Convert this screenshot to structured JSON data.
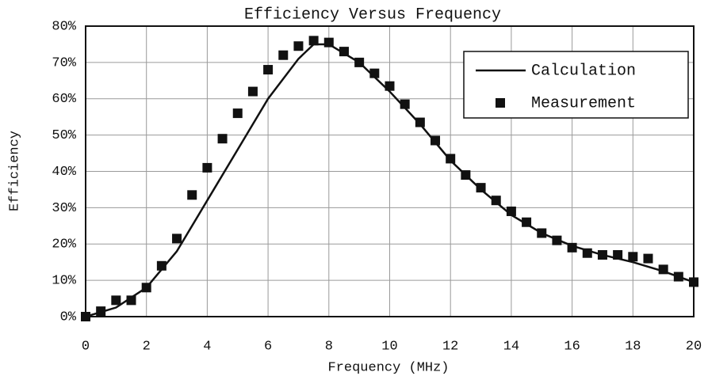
{
  "chart_data": {
    "type": "line",
    "title": "Efficiency Versus Frequency",
    "x_label": "Frequency (MHz)",
    "y_label": "Efficiency",
    "xlim": [
      0,
      20
    ],
    "ylim": [
      0,
      80
    ],
    "xticks": [
      0,
      2,
      4,
      6,
      8,
      10,
      12,
      14,
      16,
      18,
      20
    ],
    "yticks": [
      {
        "value": 0,
        "label": "0%"
      },
      {
        "value": 10,
        "label": "10%"
      },
      {
        "value": 20,
        "label": "20%"
      },
      {
        "value": 30,
        "label": "30%"
      },
      {
        "value": 40,
        "label": "40%"
      },
      {
        "value": 50,
        "label": "50%"
      },
      {
        "value": 60,
        "label": "60%"
      },
      {
        "value": 70,
        "label": "70%"
      },
      {
        "value": 80,
        "label": "80%"
      }
    ],
    "grid": true,
    "legend": "upper right",
    "series": [
      {
        "name": "Calculation",
        "color": "#111111",
        "style": "line",
        "x": [
          0,
          1,
          2,
          3,
          4,
          5,
          6,
          7,
          7.5,
          8,
          9,
          10,
          11,
          12,
          13,
          14,
          15,
          16,
          17,
          18,
          19,
          20
        ],
        "values": [
          0,
          2.5,
          8,
          18,
          32,
          46,
          60,
          71,
          75,
          75,
          70,
          62,
          53,
          43,
          35,
          28,
          23,
          19.5,
          17,
          15,
          12.5,
          9.5
        ]
      },
      {
        "name": "Measurement",
        "color": "#111111",
        "style": "markers",
        "x": [
          0,
          0.5,
          1,
          1.5,
          2,
          2.5,
          3,
          3.5,
          4,
          4.5,
          5,
          5.5,
          6,
          6.5,
          7,
          7.5,
          8,
          8.5,
          9,
          9.5,
          10,
          10.5,
          11,
          11.5,
          12,
          12.5,
          13,
          13.5,
          14,
          14.5,
          15,
          15.5,
          16,
          16.5,
          17,
          17.5,
          18,
          18.5,
          19,
          19.5,
          20
        ],
        "values": [
          0,
          1.5,
          4.5,
          4.5,
          8,
          14,
          21.5,
          33.5,
          41,
          49,
          56,
          62,
          68,
          72,
          74.5,
          76,
          75.5,
          73,
          70,
          67,
          63.5,
          58.5,
          53.5,
          48.5,
          43.5,
          39,
          35.5,
          32,
          29,
          26,
          23,
          21,
          19,
          17.5,
          17,
          17,
          16.5,
          16,
          13,
          11,
          9.5
        ]
      }
    ]
  }
}
